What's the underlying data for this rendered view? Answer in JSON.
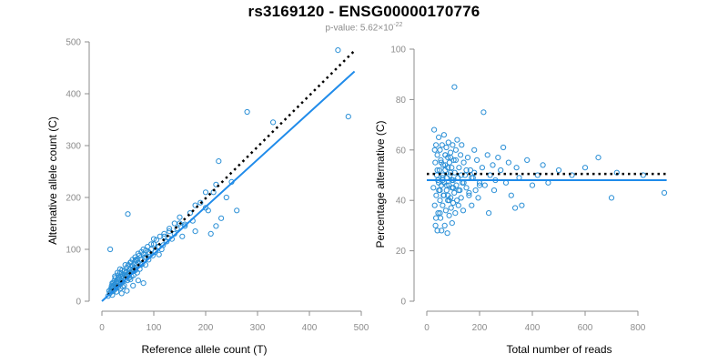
{
  "header": {
    "title": "rs3169120 - ENSG00000170776",
    "subtitle_prefix": "p-value: 5.62×10",
    "subtitle_exponent": "-22"
  },
  "colors": {
    "points": "#2a8fd6",
    "fit_line": "#1f8bea",
    "reference_line": "#000000",
    "axis": "#8c8c8c"
  },
  "chart_data": [
    {
      "type": "scatter",
      "title": "",
      "xlabel": "Reference allele count (T)",
      "ylabel": "Alternative allele count (C)",
      "xlim": [
        0,
        500
      ],
      "ylim": [
        0,
        500
      ],
      "xticks": [
        0,
        100,
        200,
        300,
        400,
        500
      ],
      "yticks": [
        0,
        100,
        200,
        300,
        400,
        500
      ],
      "grid": false,
      "lines": [
        {
          "style": "dotted",
          "color": "#000000",
          "x": [
            12,
            487
          ],
          "y": [
            12,
            483
          ]
        },
        {
          "style": "solid",
          "color": "#1f8bea",
          "x": [
            0,
            487
          ],
          "y": [
            0,
            443
          ]
        }
      ],
      "points": {
        "x": [
          12,
          14,
          15,
          16,
          17,
          18,
          18,
          19,
          20,
          20,
          21,
          22,
          22,
          23,
          24,
          24,
          25,
          26,
          26,
          27,
          28,
          28,
          29,
          30,
          30,
          31,
          32,
          33,
          34,
          35,
          36,
          36,
          37,
          38,
          39,
          40,
          40,
          41,
          42,
          43,
          44,
          45,
          46,
          47,
          48,
          49,
          50,
          51,
          52,
          53,
          54,
          55,
          56,
          57,
          58,
          59,
          60,
          61,
          62,
          63,
          64,
          65,
          66,
          67,
          68,
          69,
          70,
          72,
          73,
          75,
          76,
          78,
          80,
          82,
          84,
          85,
          88,
          90,
          92,
          95,
          98,
          100,
          103,
          105,
          108,
          110,
          112,
          115,
          118,
          120,
          125,
          128,
          130,
          135,
          140,
          145,
          150,
          155,
          160,
          170,
          175,
          180,
          190,
          200,
          205,
          210,
          215,
          220,
          225,
          230,
          240,
          250,
          260,
          280,
          330,
          455,
          475,
          20,
          25,
          30,
          35,
          40,
          45,
          50,
          55,
          60,
          65,
          70,
          75,
          80,
          85,
          90,
          95,
          100,
          110,
          120,
          130,
          140,
          150,
          160,
          180,
          200,
          220,
          60,
          70,
          80,
          48,
          55,
          62,
          38,
          44
        ],
        "y": [
          10,
          20,
          15,
          100,
          22,
          26,
          18,
          30,
          25,
          12,
          28,
          35,
          20,
          30,
          40,
          22,
          33,
          28,
          45,
          25,
          38,
          18,
          35,
          42,
          30,
          50,
          28,
          45,
          32,
          55,
          40,
          25,
          48,
          35,
          60,
          38,
          28,
          52,
          45,
          30,
          58,
          42,
          55,
          48,
          65,
          40,
          168,
          70,
          52,
          45,
          62,
          55,
          75,
          48,
          68,
          80,
          58,
          50,
          72,
          65,
          85,
          60,
          78,
          70,
          55,
          82,
          75,
          88,
          62,
          80,
          95,
          72,
          90,
          85,
          70,
          98,
          105,
          80,
          92,
          100,
          88,
          110,
          95,
          118,
          105,
          90,
          125,
          100,
          108,
          130,
          115,
          122,
          135,
          120,
          130,
          140,
          150,
          125,
          148,
          170,
          155,
          135,
          190,
          180,
          175,
          130,
          210,
          145,
          270,
          160,
          200,
          230,
          175,
          365,
          345,
          484,
          356,
          35,
          48,
          55,
          62,
          48,
          70,
          58,
          75,
          62,
          80,
          92,
          70,
          100,
          85,
          95,
          110,
          120,
          105,
          125,
          140,
          150,
          162,
          145,
          185,
          210,
          225,
          30,
          40,
          35,
          20,
          42,
          58,
          15,
          50
        ]
      }
    },
    {
      "type": "scatter",
      "title": "",
      "xlabel": "Total number of reads",
      "ylabel": "Percentage alternative (C)",
      "xlim": [
        0,
        900
      ],
      "ylim": [
        0,
        100
      ],
      "xticks": [
        0,
        200,
        400,
        600,
        800
      ],
      "yticks": [
        0,
        20,
        40,
        60,
        80,
        100
      ],
      "grid": false,
      "lines": [
        {
          "style": "dotted",
          "color": "#000000",
          "x": [
            0,
            920
          ],
          "y": [
            50.5,
            50.5
          ]
        },
        {
          "style": "solid",
          "color": "#1f8bea",
          "x": [
            0,
            920
          ],
          "y": [
            48,
            48
          ]
        }
      ],
      "points": {
        "x": [
          25,
          28,
          30,
          32,
          33,
          35,
          36,
          38,
          40,
          40,
          42,
          43,
          45,
          46,
          48,
          50,
          50,
          52,
          53,
          55,
          56,
          58,
          60,
          60,
          62,
          63,
          65,
          66,
          68,
          70,
          70,
          72,
          74,
          75,
          76,
          78,
          80,
          80,
          82,
          84,
          85,
          86,
          88,
          90,
          90,
          92,
          94,
          95,
          96,
          98,
          100,
          100,
          102,
          104,
          105,
          106,
          108,
          110,
          112,
          114,
          115,
          118,
          120,
          122,
          125,
          128,
          130,
          132,
          135,
          138,
          140,
          145,
          150,
          155,
          160,
          165,
          170,
          175,
          180,
          185,
          190,
          195,
          200,
          210,
          215,
          220,
          230,
          235,
          240,
          250,
          255,
          260,
          270,
          280,
          290,
          300,
          310,
          320,
          335,
          340,
          350,
          360,
          380,
          400,
          420,
          440,
          460,
          500,
          550,
          600,
          650,
          700,
          720,
          820,
          900,
          40,
          45,
          50,
          55,
          60,
          65,
          70,
          75,
          80,
          85,
          90,
          95,
          100,
          110,
          120,
          130,
          140,
          150,
          160,
          170,
          180,
          200,
          50,
          60,
          70,
          80,
          90,
          100,
          30,
          35
        ],
        "y": [
          45,
          68,
          38,
          55,
          30,
          62,
          42,
          50,
          28,
          58,
          48,
          35,
          65,
          44,
          52,
          40,
          60,
          33,
          56,
          46,
          28,
          62,
          50,
          38,
          54,
          42,
          66,
          47,
          30,
          58,
          52,
          36,
          61,
          44,
          49,
          27,
          57,
          40,
          63,
          46,
          34,
          55,
          50,
          41,
          59,
          37,
          53,
          45,
          31,
          62,
          48,
          39,
          56,
          43,
          85,
          51,
          35,
          60,
          46,
          40,
          64,
          49,
          38,
          53,
          44,
          58,
          41,
          62,
          47,
          36,
          55,
          50,
          45,
          57,
          42,
          52,
          38,
          49,
          60,
          44,
          56,
          41,
          47,
          53,
          75,
          46,
          58,
          35,
          50,
          54,
          44,
          48,
          57,
          52,
          61,
          47,
          55,
          42,
          37,
          53,
          49,
          38,
          56,
          46,
          50,
          54,
          47,
          52,
          50,
          53,
          57,
          41,
          51,
          50,
          43,
          52,
          47,
          44,
          55,
          49,
          42,
          58,
          46,
          53,
          40,
          51,
          48,
          45,
          56,
          44,
          50,
          47,
          52,
          43,
          49,
          51,
          46,
          35,
          48,
          54,
          42,
          57,
          45,
          60,
          33
        ],
        "point_colors": "#2a8fd6"
      }
    }
  ]
}
